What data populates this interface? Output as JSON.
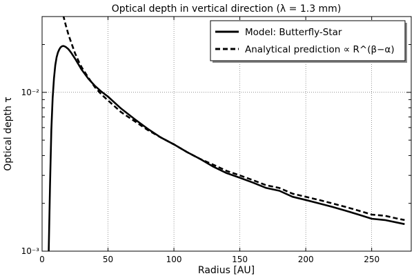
{
  "chart_data": {
    "type": "line",
    "title": "Optical depth in vertical direction  (λ = 1.3 mm)",
    "xlabel": "Radius [AU]",
    "ylabel": "Optical depth τ",
    "xlim": [
      0,
      280
    ],
    "ylim": [
      0.001,
      0.03
    ],
    "yscale": "log",
    "grid": true,
    "legend_position": "top-right",
    "x_ticks": [
      0,
      50,
      100,
      150,
      200,
      250
    ],
    "x_tick_labels": [
      "0",
      "50",
      "100",
      "150",
      "200",
      "250"
    ],
    "y_ticks": [
      0.001,
      0.01
    ],
    "y_tick_labels": [
      "10⁻³",
      "10⁻²"
    ],
    "series": [
      {
        "name": "Model: Butterfly-Star",
        "style": "solid",
        "color": "#000000",
        "x": [
          5,
          6,
          7,
          8,
          9,
          10,
          11,
          12,
          13,
          14,
          15,
          16,
          17,
          18,
          20,
          22,
          25,
          28,
          30,
          35,
          40,
          45,
          50,
          60,
          70,
          80,
          90,
          100,
          110,
          120,
          130,
          140,
          150,
          160,
          170,
          180,
          190,
          200,
          210,
          220,
          230,
          240,
          250,
          260,
          270,
          275
        ],
        "y": [
          0.001,
          0.0026,
          0.0058,
          0.0092,
          0.0122,
          0.0148,
          0.0166,
          0.0178,
          0.0186,
          0.0192,
          0.0195,
          0.0196,
          0.0195,
          0.0193,
          0.0187,
          0.0178,
          0.0163,
          0.0148,
          0.0139,
          0.0122,
          0.011,
          0.0101,
          0.0094,
          0.0079,
          0.0068,
          0.0059,
          0.0052,
          0.0047,
          0.0042,
          0.0038,
          0.0034,
          0.0031,
          0.0029,
          0.0027,
          0.0025,
          0.0024,
          0.0022,
          0.0021,
          0.002,
          0.0019,
          0.0018,
          0.0017,
          0.0016,
          0.00157,
          0.00151,
          0.00148
        ]
      },
      {
        "name": "Analytical prediction ∝ R^(β−α)",
        "style": "dashed",
        "color": "#000000",
        "x": [
          16,
          18,
          20,
          22,
          25,
          28,
          30,
          35,
          40,
          45,
          50,
          60,
          70,
          80,
          90,
          100,
          110,
          120,
          130,
          140,
          150,
          160,
          170,
          180,
          190,
          200,
          210,
          220,
          230,
          240,
          250,
          260,
          270,
          275
        ],
        "y": [
          0.0306,
          0.0264,
          0.0231,
          0.0207,
          0.0176,
          0.0155,
          0.0144,
          0.0124,
          0.0108,
          0.0097,
          0.0089,
          0.0075,
          0.0066,
          0.0058,
          0.0052,
          0.0047,
          0.0042,
          0.0038,
          0.0035,
          0.0032,
          0.003,
          0.0028,
          0.0026,
          0.0025,
          0.0023,
          0.0022,
          0.0021,
          0.002,
          0.0019,
          0.0018,
          0.0017,
          0.00167,
          0.0016,
          0.00157
        ]
      }
    ]
  }
}
